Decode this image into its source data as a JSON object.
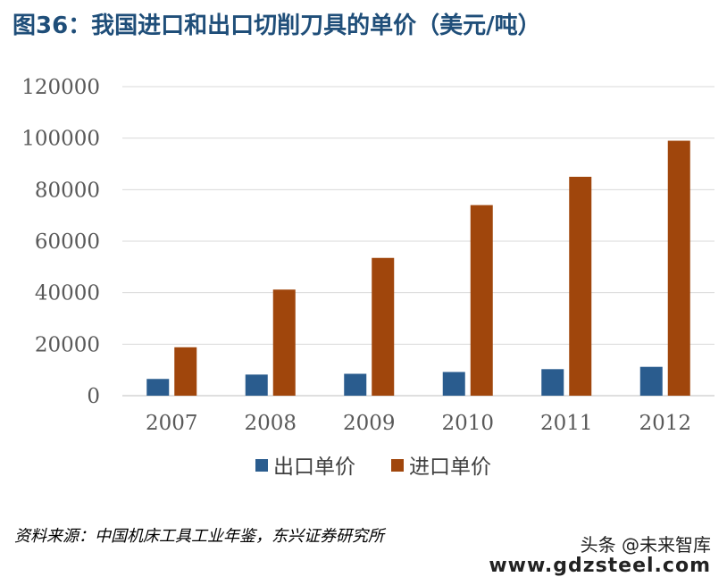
{
  "title": "图36：我国进口和出口切削刀具的单价（美元/吨）",
  "source": "资料来源：中国机床工具工业年鉴，东兴证券研究所",
  "watermark": {
    "line1": "头条 @未来智库",
    "line2": "www.gdzsteel.com"
  },
  "chart_data": {
    "type": "bar",
    "title": "图36：我国进口和出口切削刀具的单价（美元/吨）",
    "xlabel": "",
    "ylabel": "",
    "categories": [
      "2007",
      "2008",
      "2009",
      "2010",
      "2011",
      "2012"
    ],
    "ylim": [
      0,
      120000
    ],
    "yticks": [
      "0",
      "20000",
      "40000",
      "60000",
      "80000",
      "100000",
      "120000"
    ],
    "grid": true,
    "legend_position": "bottom",
    "series": [
      {
        "name": "出口单价",
        "color": "#2a5c8e",
        "values": [
          6500,
          8200,
          8500,
          9200,
          10300,
          11200
        ]
      },
      {
        "name": "进口单价",
        "color": "#a0460c",
        "values": [
          18800,
          41200,
          53500,
          74000,
          85000,
          99000
        ]
      }
    ]
  }
}
